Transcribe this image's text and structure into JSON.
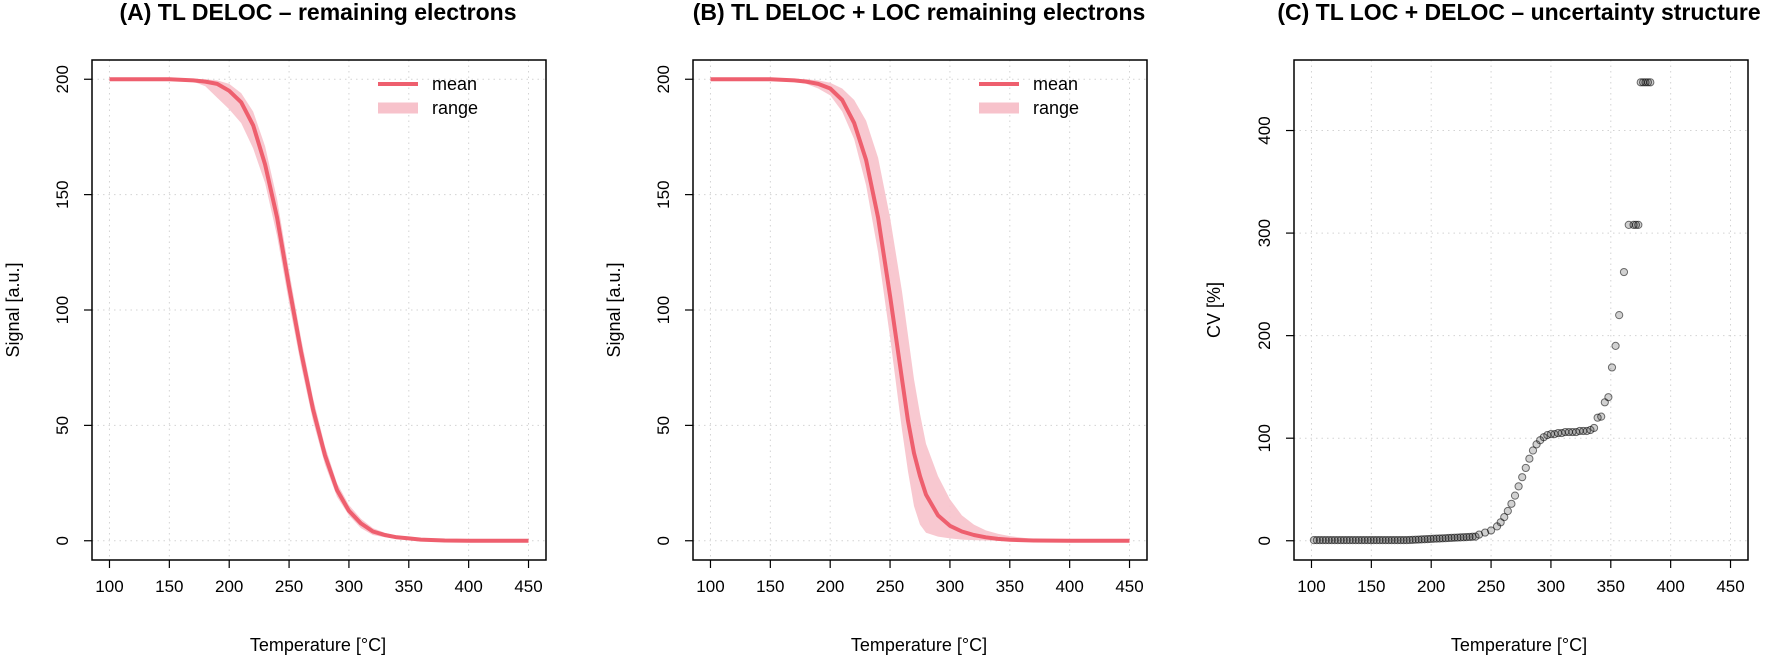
{
  "chart_data": [
    {
      "type": "line",
      "title": "(A) TL DELOC – remaining electrons",
      "xlabel": "Temperature [°C]",
      "ylabel": "Signal [a.u.]",
      "xlim": [
        100,
        450
      ],
      "ylim": [
        0,
        200
      ],
      "xticks": [
        100,
        150,
        200,
        250,
        300,
        350,
        400,
        450
      ],
      "yticks": [
        0,
        50,
        100,
        150,
        200
      ],
      "grid": true,
      "legend_position": "top-right",
      "legend": [
        "mean",
        "range"
      ],
      "colors": {
        "mean": "#ee5f6e",
        "range": "#f7c2cb"
      },
      "x": [
        100,
        150,
        170,
        180,
        190,
        200,
        210,
        220,
        230,
        240,
        250,
        260,
        270,
        280,
        290,
        300,
        310,
        320,
        330,
        340,
        350,
        360,
        380,
        400,
        450
      ],
      "mean": [
        200,
        200,
        199.5,
        199,
        198,
        195,
        190,
        180,
        163,
        140,
        110,
        82,
        57,
        37,
        22,
        13,
        7.5,
        4,
        2.5,
        1.5,
        1,
        0.5,
        0.1,
        0,
        0
      ],
      "lower": [
        200,
        200,
        199,
        197,
        192,
        187,
        181,
        170,
        155,
        132,
        103,
        76,
        52,
        33,
        19,
        11,
        5.5,
        2.5,
        1.5,
        0.8,
        0.4,
        0.2,
        0,
        0,
        0
      ],
      "upper": [
        200,
        200,
        200,
        200,
        199.5,
        198,
        194,
        186,
        171,
        148,
        117,
        88,
        62,
        41,
        25,
        15.5,
        9.5,
        5.5,
        3.5,
        2.2,
        1.4,
        0.8,
        0.2,
        0,
        0
      ]
    },
    {
      "type": "line",
      "title": "(B) TL DELOC + LOC remaining electrons",
      "xlabel": "Temperature [°C]",
      "ylabel": "Signal [a.u.]",
      "xlim": [
        100,
        450
      ],
      "ylim": [
        0,
        200
      ],
      "xticks": [
        100,
        150,
        200,
        250,
        300,
        350,
        400,
        450
      ],
      "yticks": [
        0,
        50,
        100,
        150,
        200
      ],
      "grid": true,
      "legend_position": "top-right",
      "legend": [
        "mean",
        "range"
      ],
      "colors": {
        "mean": "#ee5f6e",
        "range": "#f7c2cb"
      },
      "x": [
        100,
        150,
        170,
        180,
        190,
        200,
        210,
        220,
        230,
        240,
        250,
        260,
        265,
        270,
        275,
        280,
        290,
        300,
        310,
        320,
        330,
        340,
        350,
        370,
        400,
        450
      ],
      "mean": [
        200,
        200,
        199.5,
        199,
        198,
        196,
        191,
        181,
        165,
        140,
        106,
        70,
        52,
        38,
        28,
        20,
        11,
        6.5,
        4,
        2.5,
        1.5,
        0.8,
        0.4,
        0.1,
        0,
        0
      ],
      "lower": [
        200,
        200,
        199,
        198,
        196,
        193,
        186,
        174,
        154,
        125,
        88,
        48,
        30,
        15,
        7,
        3.5,
        1.8,
        1,
        0.5,
        0.3,
        0.1,
        0,
        0,
        0,
        0,
        0
      ],
      "upper": [
        200,
        200,
        200,
        200,
        199.5,
        198.5,
        196,
        191,
        182,
        166,
        140,
        108,
        89,
        70,
        55,
        42,
        28,
        18,
        11,
        7,
        4.5,
        3,
        2,
        0.7,
        0.1,
        0
      ]
    },
    {
      "type": "scatter",
      "title": "(C) TL LOC + DELOC – uncertainty structure",
      "xlabel": "Temperature [°C]",
      "ylabel": "CV [%]",
      "xlim": [
        100,
        450
      ],
      "ylim": [
        0,
        450
      ],
      "xticks": [
        100,
        150,
        200,
        250,
        300,
        350,
        400,
        450
      ],
      "yticks": [
        0,
        100,
        200,
        300,
        400
      ],
      "grid": true,
      "color": "#000000",
      "x": [
        240,
        245,
        250,
        255,
        258,
        261,
        264,
        267,
        270,
        273,
        276,
        279,
        282,
        285,
        288,
        291,
        294,
        297,
        300,
        303,
        306,
        309,
        312,
        315,
        318,
        321,
        324,
        327,
        330,
        333,
        336,
        339,
        342,
        345,
        348,
        351,
        354,
        357,
        361,
        365,
        369,
        371,
        373,
        375,
        377,
        379,
        381,
        383
      ],
      "y": [
        6,
        8,
        10,
        14,
        18,
        23,
        29,
        36,
        44,
        53,
        62,
        71,
        80,
        88,
        94,
        98,
        101,
        103,
        104,
        104,
        105,
        105,
        106,
        106,
        106,
        106,
        107,
        107,
        107,
        108,
        110,
        120,
        121,
        135,
        140,
        169,
        190,
        220,
        262,
        308,
        308,
        308,
        308,
        447,
        447,
        447,
        447,
        447
      ]
    }
  ]
}
